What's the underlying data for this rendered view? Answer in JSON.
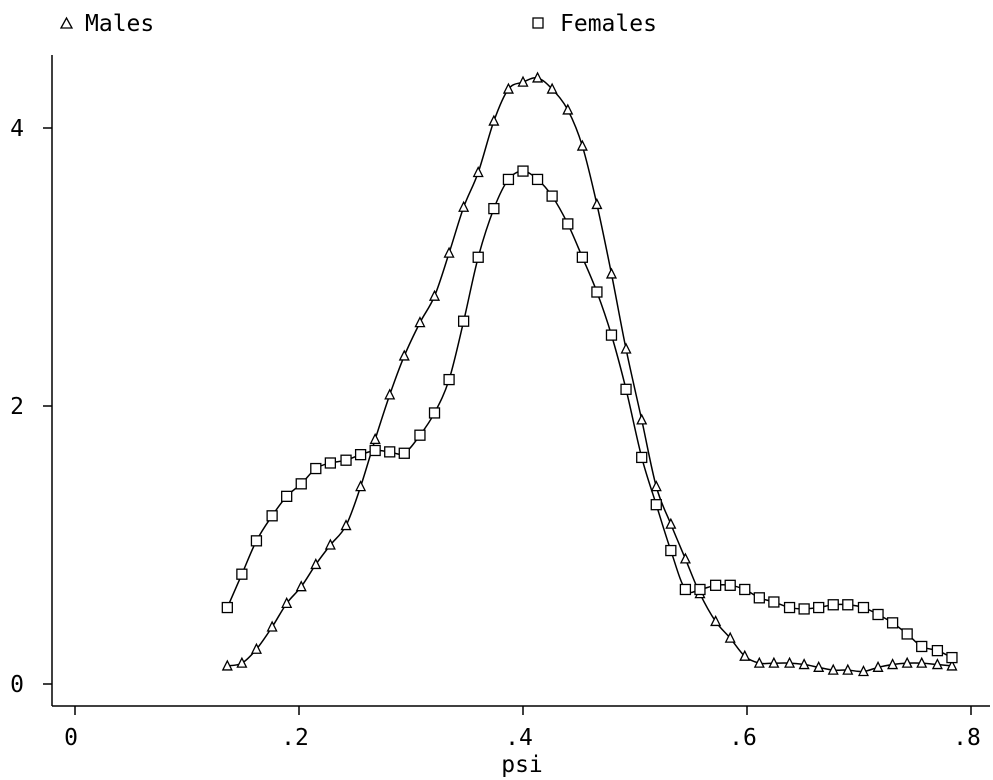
{
  "chart_data": {
    "type": "line",
    "xlabel": "psi",
    "ylabel": "",
    "xlim": [
      0,
      0.8
    ],
    "ylim": [
      0,
      4.4
    ],
    "xticks": [
      0,
      0.2,
      0.4,
      0.6,
      0.8
    ],
    "xtick_labels": [
      "0",
      ".2",
      ".4",
      ".6",
      ".8"
    ],
    "yticks": [
      0,
      2,
      4
    ],
    "ytick_labels": [
      "0",
      "2",
      "4"
    ],
    "grid": false,
    "legend_position": "top",
    "series": [
      {
        "name": "Males",
        "marker": "triangle",
        "x": [
          0.136,
          0.149,
          0.162,
          0.176,
          0.189,
          0.202,
          0.215,
          0.228,
          0.242,
          0.255,
          0.268,
          0.281,
          0.294,
          0.308,
          0.321,
          0.334,
          0.347,
          0.36,
          0.374,
          0.387,
          0.4,
          0.413,
          0.426,
          0.44,
          0.453,
          0.466,
          0.479,
          0.492,
          0.506,
          0.519,
          0.532,
          0.545,
          0.558,
          0.572,
          0.585,
          0.598,
          0.611,
          0.624,
          0.638,
          0.651,
          0.664,
          0.677,
          0.69,
          0.704,
          0.717,
          0.73,
          0.743,
          0.756,
          0.77,
          0.783
        ],
        "y": [
          0.13,
          0.15,
          0.25,
          0.41,
          0.58,
          0.7,
          0.86,
          1.0,
          1.14,
          1.42,
          1.76,
          2.08,
          2.36,
          2.6,
          2.79,
          3.1,
          3.43,
          3.68,
          4.05,
          4.28,
          4.33,
          4.36,
          4.28,
          4.13,
          3.87,
          3.45,
          2.95,
          2.41,
          1.9,
          1.42,
          1.15,
          0.9,
          0.65,
          0.45,
          0.33,
          0.2,
          0.15,
          0.15,
          0.15,
          0.14,
          0.12,
          0.1,
          0.1,
          0.09,
          0.12,
          0.14,
          0.15,
          0.15,
          0.14,
          0.13
        ]
      },
      {
        "name": "Females",
        "marker": "square",
        "x": [
          0.136,
          0.149,
          0.162,
          0.176,
          0.189,
          0.202,
          0.215,
          0.228,
          0.242,
          0.255,
          0.268,
          0.281,
          0.294,
          0.308,
          0.321,
          0.334,
          0.347,
          0.36,
          0.374,
          0.387,
          0.4,
          0.413,
          0.426,
          0.44,
          0.453,
          0.466,
          0.479,
          0.492,
          0.506,
          0.519,
          0.532,
          0.545,
          0.558,
          0.572,
          0.585,
          0.598,
          0.611,
          0.624,
          0.638,
          0.651,
          0.664,
          0.677,
          0.69,
          0.704,
          0.717,
          0.73,
          0.743,
          0.756,
          0.77,
          0.783
        ],
        "y": [
          0.55,
          0.79,
          1.03,
          1.21,
          1.35,
          1.44,
          1.55,
          1.59,
          1.61,
          1.65,
          1.68,
          1.67,
          1.66,
          1.79,
          1.95,
          2.19,
          2.61,
          3.07,
          3.42,
          3.63,
          3.69,
          3.63,
          3.51,
          3.31,
          3.07,
          2.82,
          2.51,
          2.12,
          1.63,
          1.29,
          0.96,
          0.68,
          0.68,
          0.71,
          0.71,
          0.68,
          0.62,
          0.59,
          0.55,
          0.54,
          0.55,
          0.57,
          0.57,
          0.55,
          0.5,
          0.44,
          0.36,
          0.27,
          0.24,
          0.19
        ]
      }
    ]
  }
}
